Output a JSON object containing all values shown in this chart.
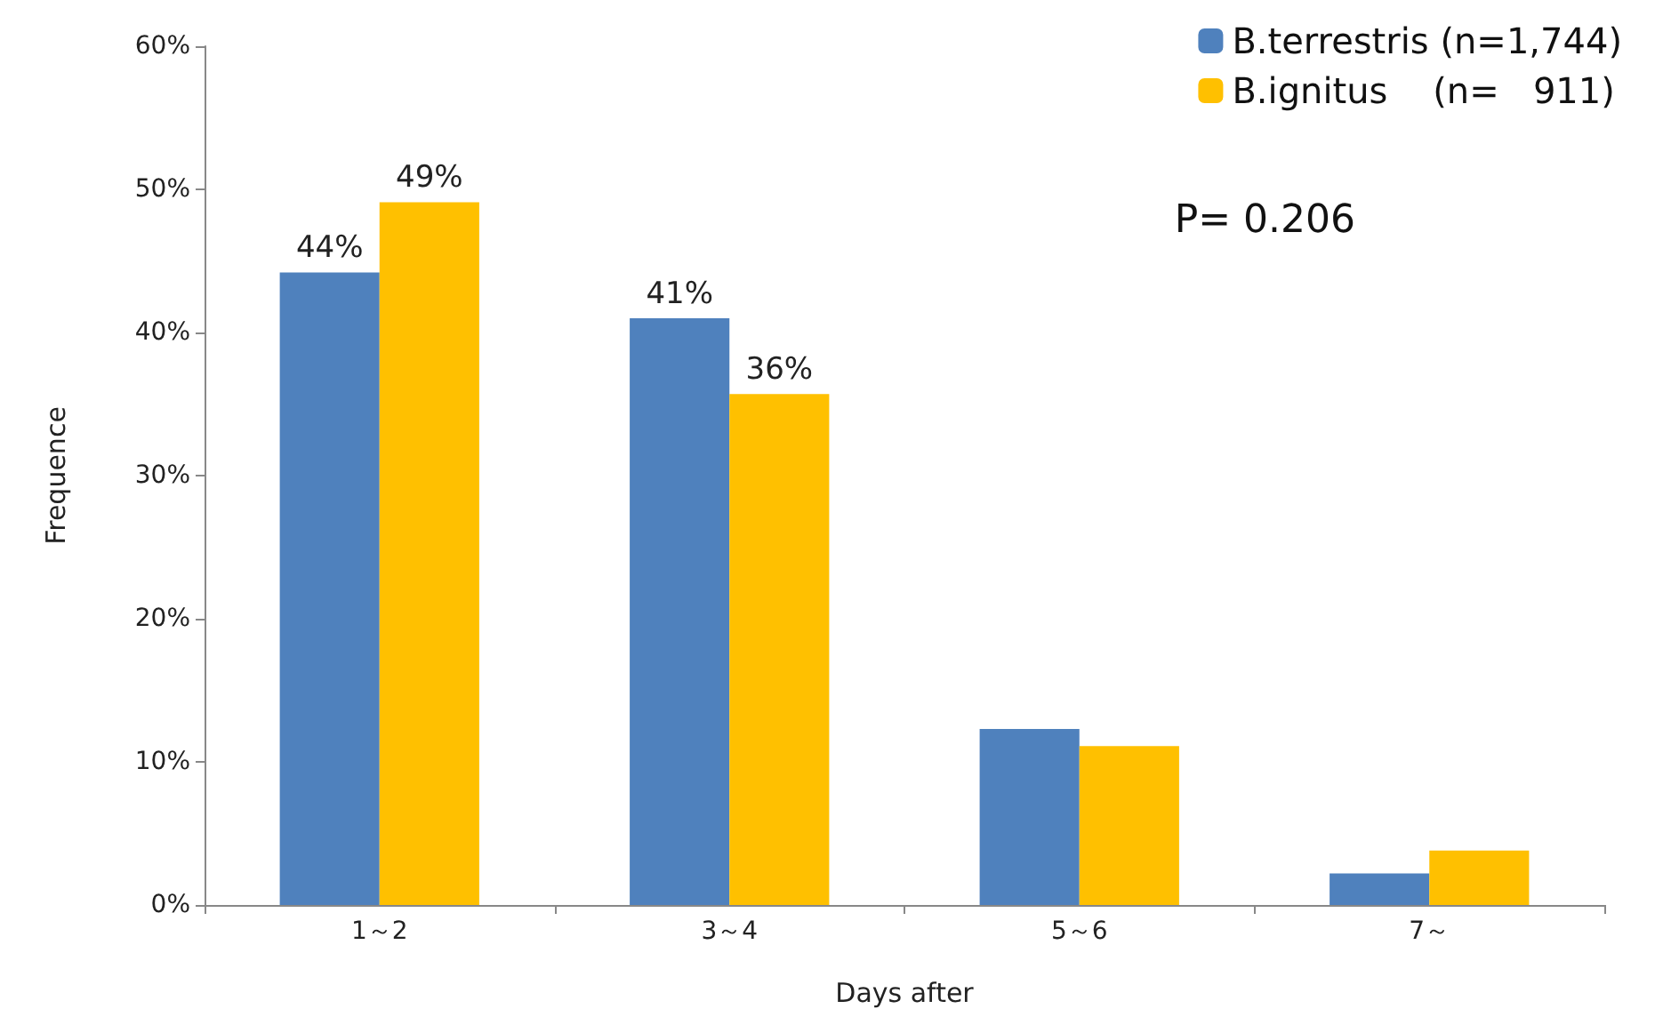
{
  "chart_data": {
    "type": "bar",
    "xlabel": "Days after",
    "ylabel": "Frequence",
    "categories": [
      "1～2",
      "3～4",
      "5～6",
      "7～"
    ],
    "series": [
      {
        "name": "B.terrestris (n=1,744)",
        "color": "#4f81bd",
        "values": [
          44.2,
          41.0,
          12.3,
          2.2
        ],
        "value_labels": [
          "44%",
          "41%",
          null,
          null
        ]
      },
      {
        "name": "B.ignitus    (n=   911)",
        "color": "#ffc000",
        "values": [
          49.1,
          35.7,
          11.1,
          3.8
        ],
        "value_labels": [
          "49%",
          "36%",
          null,
          null
        ]
      }
    ],
    "ylim": [
      0,
      60
    ],
    "yticks": [
      {
        "value": 0,
        "label": "0%"
      },
      {
        "value": 10,
        "label": "10%"
      },
      {
        "value": 20,
        "label": "20%"
      },
      {
        "value": 30,
        "label": "30%"
      },
      {
        "value": 40,
        "label": "40%"
      },
      {
        "value": 50,
        "label": "50%"
      },
      {
        "value": 60,
        "label": "60%"
      }
    ],
    "grid": false,
    "legend": "top right",
    "annotations": [
      "P= 0.206"
    ]
  }
}
